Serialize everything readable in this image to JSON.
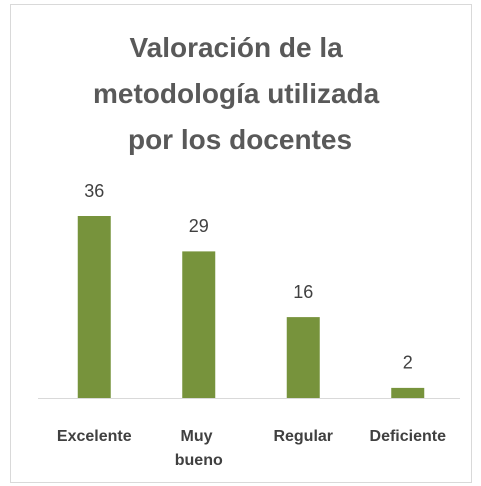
{
  "chart_data": {
    "type": "bar",
    "title": "Valoración de la metodología utilizada por los docentes",
    "categories": [
      "Excelente",
      "Muy bueno",
      "Regular",
      "Deficiente"
    ],
    "values": [
      36,
      29,
      16,
      2
    ],
    "color": "#77933c"
  }
}
